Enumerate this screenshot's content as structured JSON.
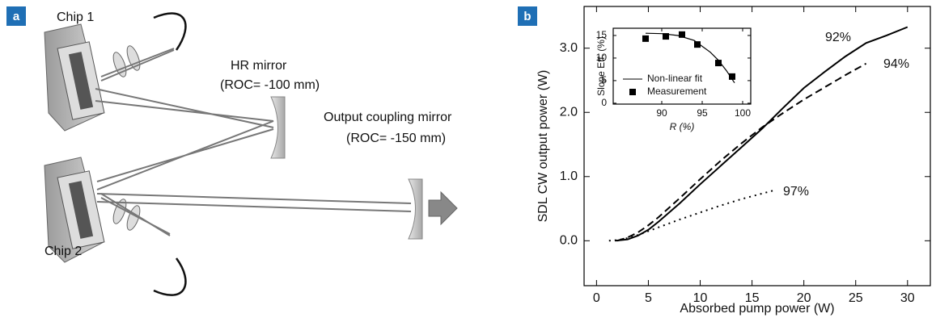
{
  "figure": {
    "panel_a": {
      "label": "a",
      "chip_1": "Chip 1",
      "chip_2": "Chip 2",
      "hr_mirror": "HR mirror",
      "hr_roc": "(ROC= -100 mm)",
      "oc_mirror": "Output coupling mirror",
      "oc_roc": "(ROC= -150 mm)"
    },
    "panel_b": {
      "label": "b"
    }
  },
  "chart_data": [
    {
      "type": "line",
      "xlabel": "Absorbed pump power (W)",
      "ylabel": "SDL CW output power (W)",
      "xlim": [
        -1.2,
        32.2
      ],
      "ylim": [
        -0.7,
        3.65
      ],
      "xticks": [
        0,
        5,
        10,
        15,
        20,
        25,
        30
      ],
      "yticks": [
        {
          "value": 0,
          "label": "0.0"
        },
        {
          "value": 1,
          "label": "1.0"
        },
        {
          "value": 2,
          "label": "2.0"
        },
        {
          "value": 3,
          "label": "3.0"
        }
      ],
      "series": [
        {
          "name": "92%",
          "color": "#000000",
          "style": "solid",
          "x": [
            1.8,
            3,
            4,
            5,
            6,
            8,
            10,
            12,
            14,
            16,
            18,
            20,
            22,
            24,
            26,
            28,
            30
          ],
          "values": [
            0,
            0.02,
            0.08,
            0.17,
            0.3,
            0.58,
            0.88,
            1.17,
            1.46,
            1.75,
            2.07,
            2.38,
            2.63,
            2.87,
            3.08,
            3.2,
            3.33
          ]
        },
        {
          "name": "94%",
          "color": "#000000",
          "style": "dashed",
          "x": [
            2,
            3,
            4,
            5,
            6,
            8,
            10,
            12,
            14,
            16,
            18,
            20,
            22,
            24,
            26
          ],
          "values": [
            0,
            0.05,
            0.13,
            0.24,
            0.37,
            0.66,
            0.96,
            1.25,
            1.52,
            1.77,
            1.99,
            2.2,
            2.39,
            2.58,
            2.76
          ]
        },
        {
          "name": "97%",
          "color": "#000000",
          "style": "dotted",
          "x": [
            1.2,
            2,
            3,
            4,
            5,
            6,
            8,
            10,
            12,
            14,
            17
          ],
          "values": [
            0,
            0.01,
            0.04,
            0.09,
            0.15,
            0.21,
            0.33,
            0.44,
            0.55,
            0.65,
            0.78
          ]
        }
      ]
    },
    {
      "type": "line",
      "xlabel": "R (%)",
      "ylabel": "Slope Eff. (%)",
      "xlim": [
        84,
        101
      ],
      "ylim": [
        -0.2,
        16.6
      ],
      "xticks": [
        90,
        95,
        100
      ],
      "yticks": [
        0,
        5,
        10,
        15
      ],
      "series": [
        {
          "name": "Non-linear fit",
          "color": "#000000",
          "style": "solid",
          "x": [
            88,
            90,
            92,
            94,
            96,
            97,
            98,
            99
          ],
          "values": [
            15.5,
            15.4,
            15.0,
            13.9,
            11.3,
            9.5,
            7.2,
            4.5
          ]
        },
        {
          "name": "Measurement",
          "color": "#000000",
          "style": "marker",
          "x": [
            88,
            90.5,
            92.5,
            94.4,
            97,
            98.7
          ],
          "values": [
            14.3,
            14.8,
            15.2,
            13.0,
            8.9,
            5.9
          ]
        }
      ]
    }
  ]
}
